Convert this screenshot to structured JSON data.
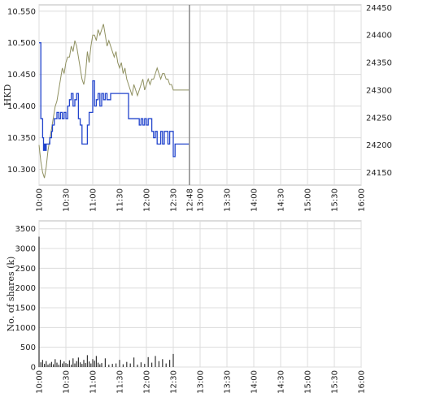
{
  "chart_data": [
    {
      "type": "line",
      "ylabel": "HKD",
      "x_ticks": [
        "10:00",
        "10:30",
        "11:00",
        "11:30",
        "12:00",
        "12:30",
        "12:48",
        "13:00",
        "13:30",
        "14:00",
        "14:30",
        "15:00",
        "15:30",
        "16:00"
      ],
      "ylim": [
        10.275,
        10.56
      ],
      "yticks": [
        "10.550",
        "10.500",
        "10.450",
        "10.400",
        "10.350",
        "10.300"
      ],
      "y2lim": [
        24127,
        24455
      ],
      "y2ticks": [
        "24450",
        "24400",
        "24350",
        "24300",
        "24250",
        "24200",
        "24150"
      ],
      "current_time_marker": "12:48",
      "grid": true,
      "colors": {
        "price": "#2244cc",
        "index": "#8f9060",
        "marker": "#888888"
      },
      "series": [
        {
          "axis": "left",
          "x": [
            "10:00",
            "10:02",
            "10:03",
            "10:04",
            "10:05",
            "10:06",
            "10:07",
            "10:08",
            "10:10",
            "10:12",
            "10:14",
            "10:15",
            "10:17",
            "10:20",
            "10:22",
            "10:24",
            "10:26",
            "10:28",
            "10:30",
            "10:32",
            "10:34",
            "10:36",
            "10:38",
            "10:40",
            "10:42",
            "10:44",
            "10:46",
            "10:48",
            "10:50",
            "10:52",
            "10:54",
            "10:56",
            "10:58",
            "11:00",
            "11:02",
            "11:04",
            "11:06",
            "11:08",
            "11:10",
            "11:12",
            "11:14",
            "11:16",
            "11:18",
            "11:20",
            "11:25",
            "11:30",
            "11:35",
            "11:40",
            "11:45",
            "11:50",
            "11:52",
            "11:54",
            "11:56",
            "11:58",
            "12:00",
            "12:02",
            "12:04",
            "12:06",
            "12:08",
            "12:10",
            "12:12",
            "12:14",
            "12:16",
            "12:18",
            "12:20",
            "12:22",
            "12:24",
            "12:26",
            "12:28",
            "12:30",
            "12:32",
            "12:40",
            "12:48"
          ],
          "values": [
            10.5,
            10.38,
            10.38,
            10.35,
            10.33,
            10.34,
            10.33,
            10.34,
            10.34,
            10.35,
            10.36,
            10.37,
            10.38,
            10.39,
            10.38,
            10.39,
            10.38,
            10.39,
            10.38,
            10.4,
            10.41,
            10.42,
            10.4,
            10.41,
            10.42,
            10.38,
            10.37,
            10.34,
            10.34,
            10.34,
            10.37,
            10.39,
            10.39,
            10.44,
            10.4,
            10.41,
            10.42,
            10.4,
            10.42,
            10.41,
            10.42,
            10.41,
            10.41,
            10.42,
            10.42,
            10.42,
            10.42,
            10.38,
            10.38,
            10.38,
            10.37,
            10.38,
            10.37,
            10.38,
            10.37,
            10.38,
            10.38,
            10.36,
            10.35,
            10.36,
            10.34,
            10.34,
            10.36,
            10.34,
            10.36,
            10.36,
            10.34,
            10.36,
            10.36,
            10.32,
            10.34,
            10.34,
            10.34
          ]
        },
        {
          "axis": "right",
          "x": [
            "10:00",
            "10:02",
            "10:04",
            "10:06",
            "10:08",
            "10:10",
            "10:12",
            "10:14",
            "10:16",
            "10:18",
            "10:20",
            "10:22",
            "10:24",
            "10:26",
            "10:28",
            "10:30",
            "10:32",
            "10:34",
            "10:36",
            "10:38",
            "10:40",
            "10:42",
            "10:44",
            "10:46",
            "10:48",
            "10:50",
            "10:52",
            "10:54",
            "10:56",
            "10:58",
            "11:00",
            "11:02",
            "11:04",
            "11:06",
            "11:08",
            "11:10",
            "11:12",
            "11:14",
            "11:16",
            "11:18",
            "11:20",
            "11:22",
            "11:24",
            "11:26",
            "11:28",
            "11:30",
            "11:32",
            "11:34",
            "11:36",
            "11:38",
            "11:40",
            "11:42",
            "11:44",
            "11:46",
            "11:48",
            "11:50",
            "11:52",
            "11:54",
            "11:56",
            "11:58",
            "12:00",
            "12:02",
            "12:04",
            "12:06",
            "12:08",
            "12:10",
            "12:12",
            "12:14",
            "12:16",
            "12:18",
            "12:20",
            "12:22",
            "12:24",
            "12:26",
            "12:28",
            "12:30",
            "12:32",
            "12:40",
            "12:48"
          ],
          "values": [
            24200,
            24170,
            24150,
            24140,
            24160,
            24190,
            24210,
            24230,
            24250,
            24270,
            24280,
            24300,
            24320,
            24340,
            24330,
            24350,
            24360,
            24360,
            24380,
            24370,
            24390,
            24380,
            24360,
            24340,
            24320,
            24310,
            24330,
            24370,
            24350,
            24380,
            24400,
            24400,
            24390,
            24410,
            24400,
            24410,
            24420,
            24400,
            24380,
            24390,
            24380,
            24370,
            24360,
            24370,
            24350,
            24340,
            24350,
            24330,
            24340,
            24320,
            24310,
            24300,
            24290,
            24310,
            24300,
            24290,
            24300,
            24310,
            24320,
            24300,
            24310,
            24320,
            24310,
            24320,
            24320,
            24330,
            24340,
            24330,
            24320,
            24330,
            24330,
            24320,
            24320,
            24310,
            24310,
            24300,
            24300,
            24300,
            24300
          ]
        }
      ]
    },
    {
      "type": "bar",
      "ylabel": "No. of shares (k)",
      "x_ticks": [
        "10:00",
        "10:30",
        "11:00",
        "11:30",
        "12:00",
        "12:30",
        "13:00",
        "13:30",
        "14:00",
        "14:30",
        "15:00",
        "15:30",
        "16:00"
      ],
      "ylim": [
        0,
        3700
      ],
      "yticks": [
        "3500",
        "3000",
        "2500",
        "2000",
        "1500",
        "1000",
        "500",
        "0"
      ],
      "grid": true,
      "colors": {
        "bar": "#333333"
      },
      "x": [
        "10:00",
        "10:02",
        "10:04",
        "10:06",
        "10:08",
        "10:10",
        "10:12",
        "10:14",
        "10:16",
        "10:18",
        "10:20",
        "10:22",
        "10:24",
        "10:26",
        "10:28",
        "10:30",
        "10:32",
        "10:34",
        "10:36",
        "10:38",
        "10:40",
        "10:42",
        "10:44",
        "10:46",
        "10:48",
        "10:50",
        "10:52",
        "10:54",
        "10:56",
        "10:58",
        "11:00",
        "11:02",
        "11:04",
        "11:06",
        "11:08",
        "11:10",
        "11:14",
        "11:18",
        "11:22",
        "11:26",
        "11:30",
        "11:34",
        "11:38",
        "11:42",
        "11:46",
        "11:50",
        "11:54",
        "11:58",
        "12:02",
        "12:06",
        "12:10",
        "12:14",
        "12:18",
        "12:22",
        "12:26",
        "12:30"
      ],
      "values": [
        3300,
        120,
        180,
        80,
        150,
        60,
        90,
        130,
        70,
        200,
        110,
        60,
        180,
        90,
        140,
        100,
        80,
        170,
        60,
        220,
        90,
        150,
        240,
        120,
        80,
        180,
        100,
        300,
        140,
        90,
        200,
        160,
        280,
        110,
        70,
        100,
        220,
        60,
        80,
        90,
        180,
        70,
        130,
        90,
        240,
        60,
        120,
        80,
        250,
        110,
        280,
        150,
        200,
        90,
        180,
        330
      ]
    }
  ]
}
